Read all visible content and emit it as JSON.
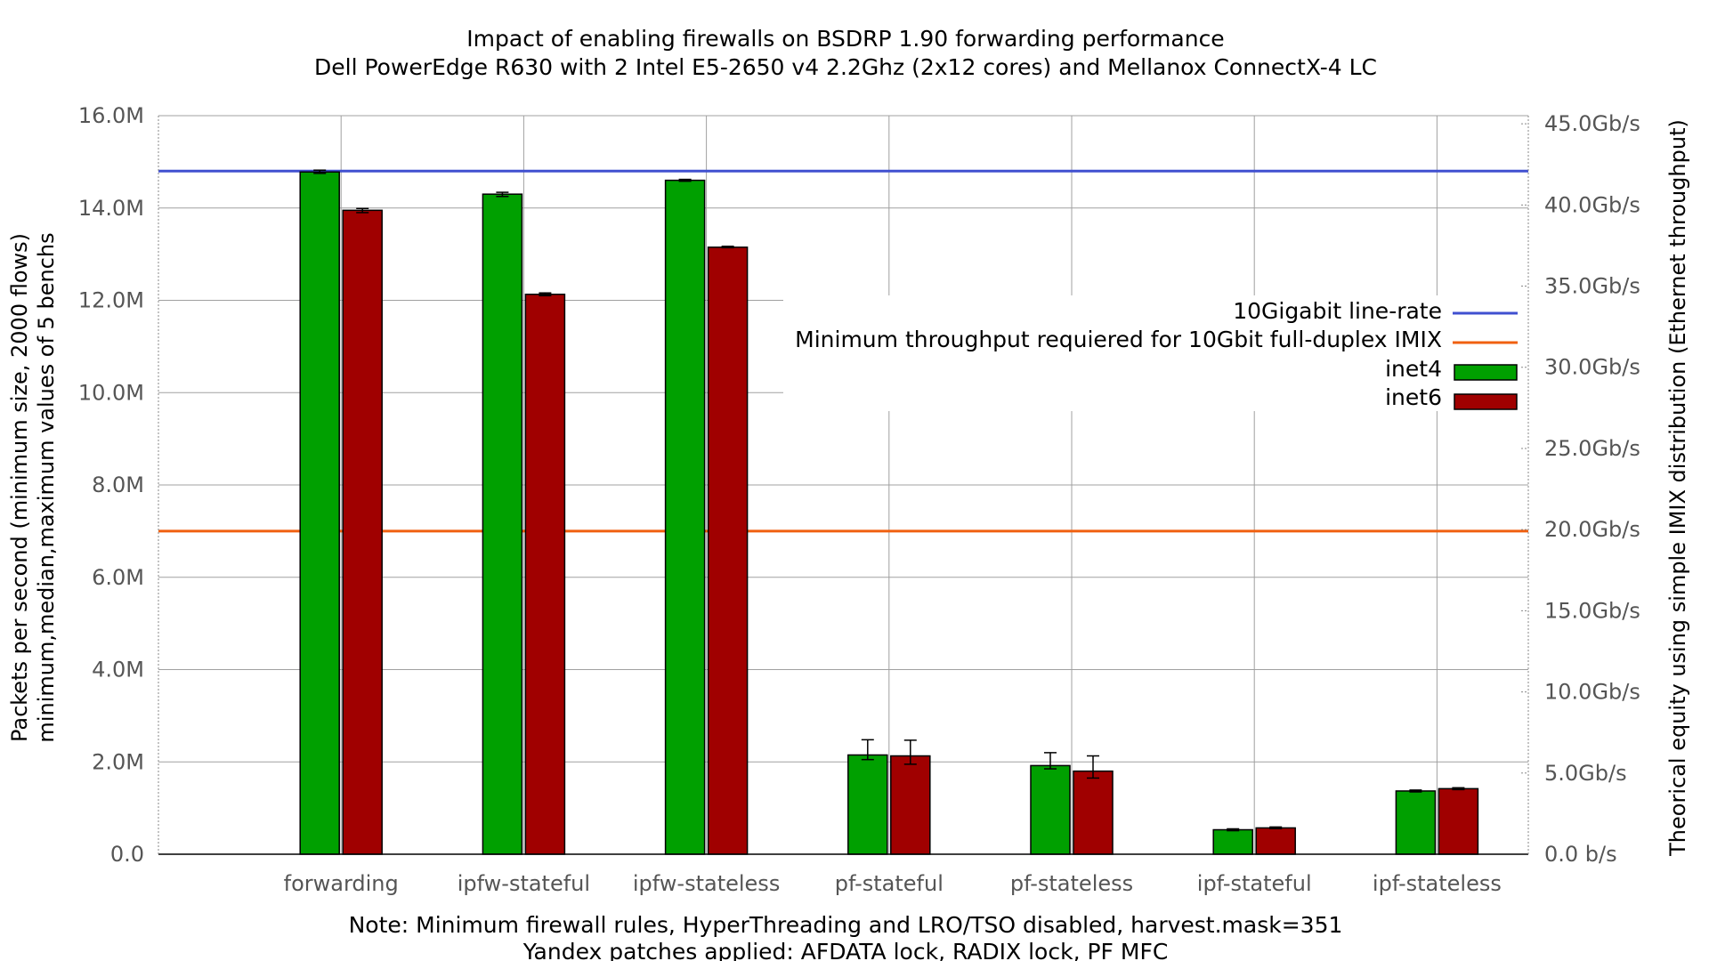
{
  "chart_data": {
    "type": "bar",
    "title": "Impact of enabling firewalls on BSDRP 1.90 forwarding performance",
    "subtitle": "Dell PowerEdge R630 with 2 Intel E5-2650 v4 2.2Ghz (2x12 cores) and Mellanox ConnectX-4 LC",
    "ylabel": "Packets per second (minimum size, 2000 flows)",
    "ylabel2": "minimum,median,maximum values of 5 benchs",
    "y2label": "Theorical equity using simple IMIX distribution (Ethernet throughput)",
    "notes": [
      "Note: Minimum firewall rules, HyperThreading and LRO/TSO disabled, harvest.mask=351",
      "Yandex patches applied: AFDATA lock, RADIX lock, PF MFC"
    ],
    "ylim": [
      0,
      16000000
    ],
    "y_ticks": [
      0,
      2000000,
      4000000,
      6000000,
      8000000,
      10000000,
      12000000,
      14000000,
      16000000
    ],
    "y_tick_labels": [
      "0.0",
      "2.0M",
      "4.0M",
      "6.0M",
      "8.0M",
      "10.0M",
      "12.0M",
      "14.0M",
      "16.0M"
    ],
    "y2_ticks_gbps": [
      0,
      5,
      10,
      15,
      20,
      25,
      30,
      35,
      40,
      45
    ],
    "y2_tick_labels": [
      "0.0 b/s",
      "5.0Gb/s",
      "10.0Gb/s",
      "15.0Gb/s",
      "20.0Gb/s",
      "25.0Gb/s",
      "30.0Gb/s",
      "35.0Gb/s",
      "40.0Gb/s",
      "45.0Gb/s"
    ],
    "y2_max_gbps": 45.5,
    "categories": [
      "forwarding",
      "ipfw-stateful",
      "ipfw-stateless",
      "pf-stateful",
      "pf-stateless",
      "ipf-stateful",
      "ipf-stateless"
    ],
    "series": [
      {
        "name": "inet4",
        "color": "#00a000",
        "values": [
          14780000,
          14300000,
          14600000,
          2150000,
          1920000,
          530000,
          1370000
        ],
        "min": [
          14750000,
          14250000,
          14580000,
          2050000,
          1850000,
          510000,
          1350000
        ],
        "max": [
          14820000,
          14340000,
          14620000,
          2480000,
          2200000,
          550000,
          1390000
        ]
      },
      {
        "name": "inet6",
        "color": "#a00000",
        "values": [
          13950000,
          12130000,
          13150000,
          2130000,
          1800000,
          570000,
          1420000
        ],
        "min": [
          13900000,
          12100000,
          13140000,
          1950000,
          1650000,
          555000,
          1400000
        ],
        "max": [
          13990000,
          12160000,
          13170000,
          2470000,
          2130000,
          590000,
          1440000
        ]
      }
    ],
    "reference_lines": [
      {
        "name": "10Gigabit line-rate",
        "value": 14800000,
        "color": "#4050d0"
      },
      {
        "name": "Minimum throughput requiered for 10Gbit full-duplex IMIX",
        "value": 7000000,
        "color": "#f06010"
      }
    ],
    "legend_position": "right"
  }
}
